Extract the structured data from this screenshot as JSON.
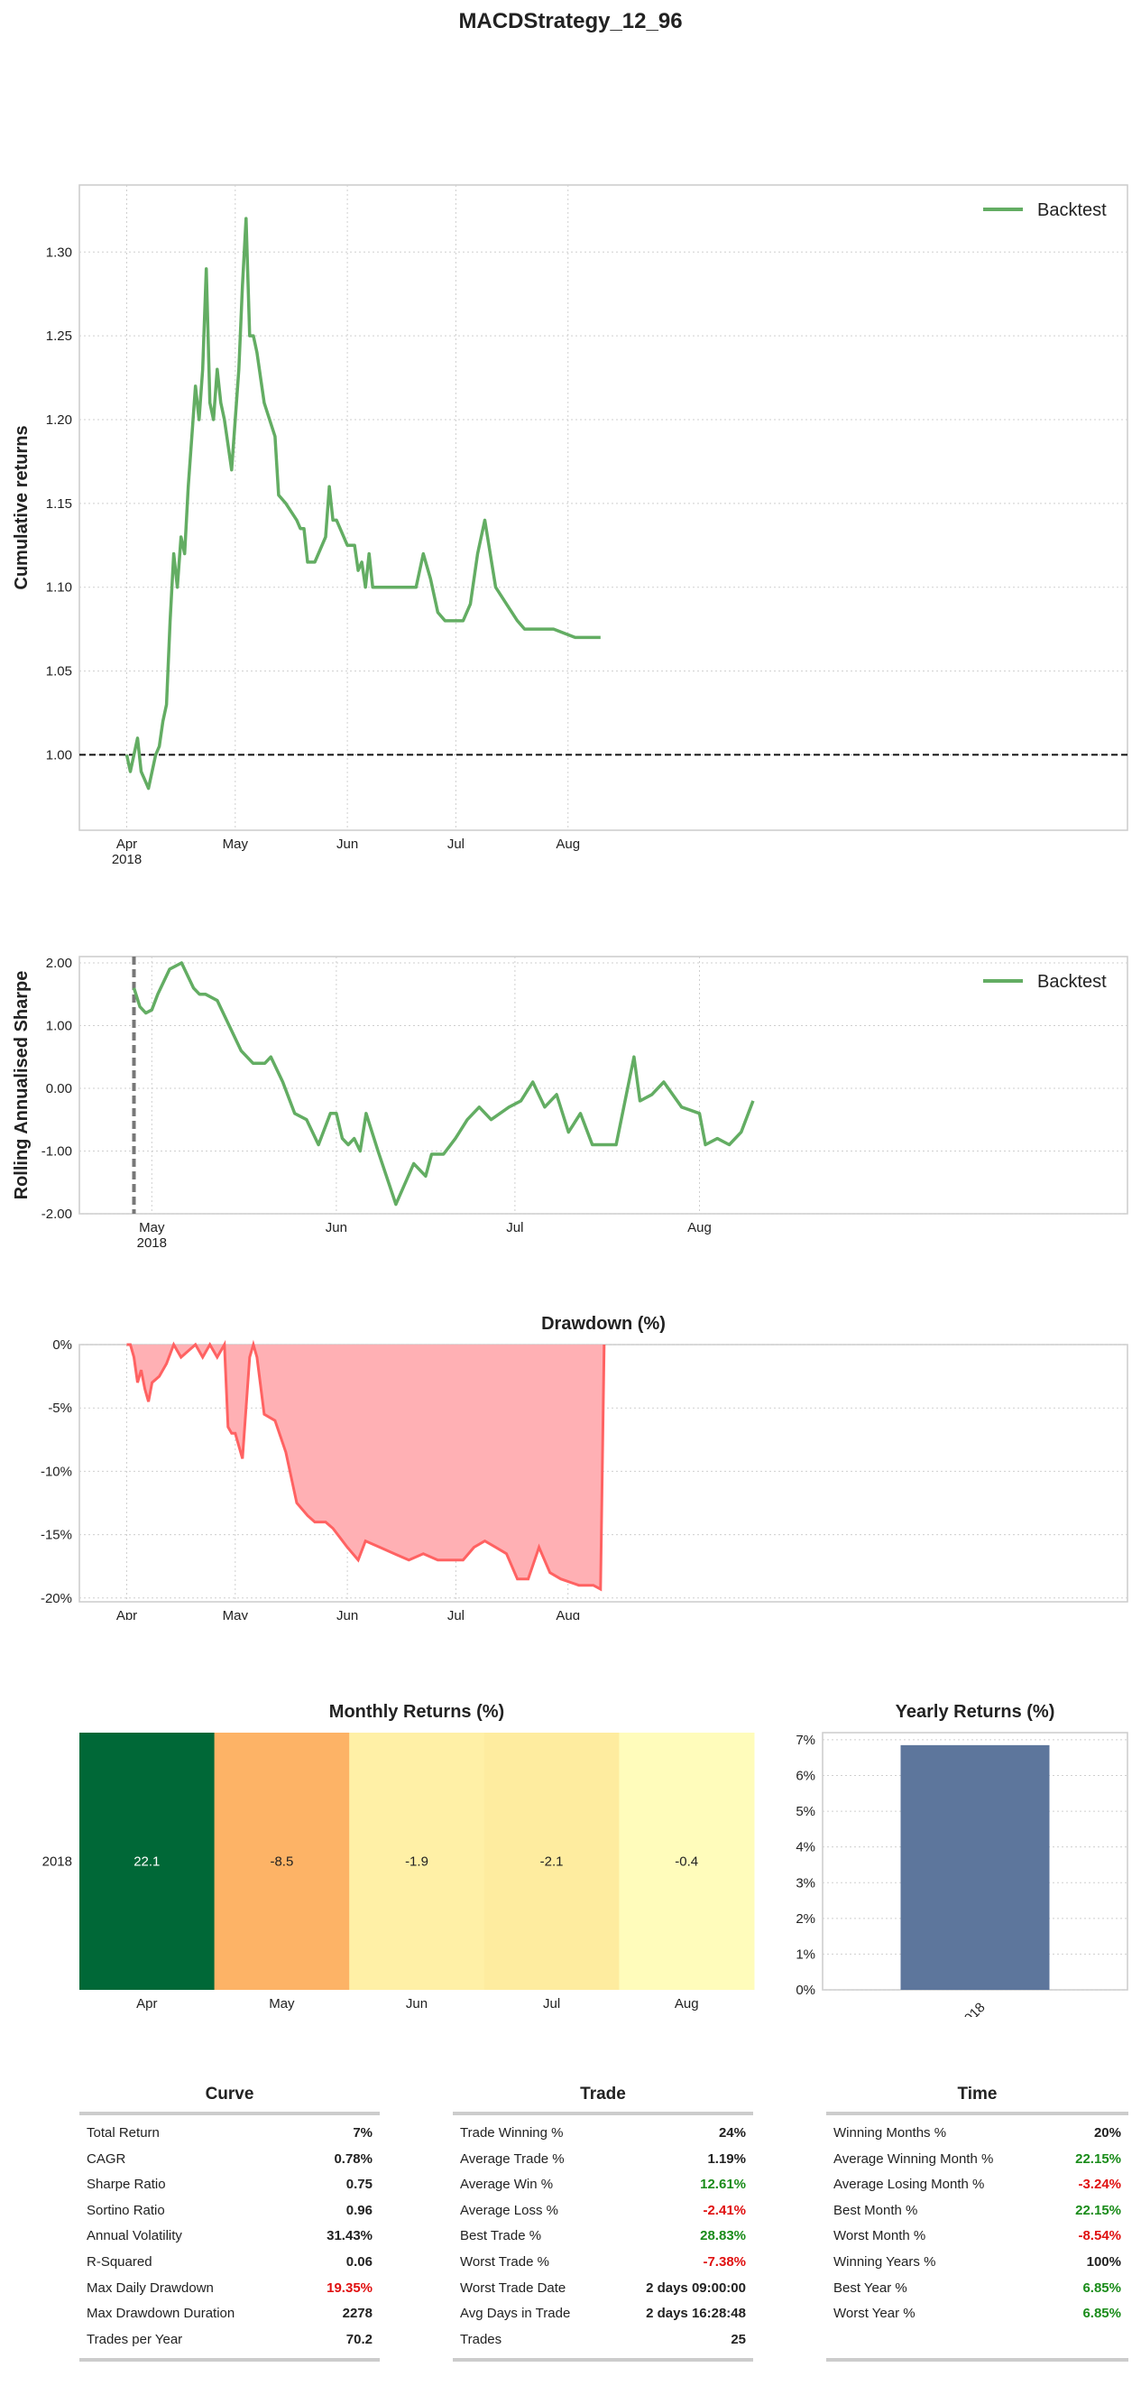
{
  "title": "MACDStrategy_12_96",
  "colors": {
    "backtest": "#63ad63",
    "drawdown_fill": "#ffb0b4",
    "drawdown_line": "#ff6262",
    "bar": "#5d769c",
    "positive": "#1a8c1a",
    "negative": "#e01010"
  },
  "chart_data": [
    {
      "id": "cumulative",
      "type": "line",
      "ylabel": "Cumulative returns",
      "ylim": [
        0.955,
        1.34
      ],
      "yticks": [
        "0.95",
        "1.00",
        "1.05",
        "1.10",
        "1.15",
        "1.20",
        "1.25",
        "1.30"
      ],
      "xticks": [
        "Apr\n2018",
        "May",
        "Jun",
        "Jul",
        "Aug"
      ],
      "grid": true,
      "legend": "top-right",
      "baseline": 1.0,
      "series": [
        {
          "name": "Backtest",
          "x": [
            "2018-04-01",
            "2018-04-02",
            "2018-04-03",
            "2018-04-04",
            "2018-04-05",
            "2018-04-06",
            "2018-04-07",
            "2018-04-08",
            "2018-04-09",
            "2018-04-10",
            "2018-04-11",
            "2018-04-12",
            "2018-04-13",
            "2018-04-14",
            "2018-04-15",
            "2018-04-16",
            "2018-04-17",
            "2018-04-18",
            "2018-04-19",
            "2018-04-20",
            "2018-04-21",
            "2018-04-22",
            "2018-04-23",
            "2018-04-24",
            "2018-04-25",
            "2018-04-26",
            "2018-04-27",
            "2018-04-28",
            "2018-04-30",
            "2018-05-02",
            "2018-05-03",
            "2018-05-04",
            "2018-05-05",
            "2018-05-06",
            "2018-05-07",
            "2018-05-09",
            "2018-05-12",
            "2018-05-13",
            "2018-05-15",
            "2018-05-18",
            "2018-05-19",
            "2018-05-20",
            "2018-05-21",
            "2018-05-23",
            "2018-05-26",
            "2018-05-27",
            "2018-05-28",
            "2018-05-29",
            "2018-06-01",
            "2018-06-02",
            "2018-06-03",
            "2018-06-04",
            "2018-06-05",
            "2018-06-06",
            "2018-06-07",
            "2018-06-08",
            "2018-06-10",
            "2018-06-13",
            "2018-06-16",
            "2018-06-20",
            "2018-06-22",
            "2018-06-24",
            "2018-06-26",
            "2018-06-28",
            "2018-07-01",
            "2018-07-03",
            "2018-07-05",
            "2018-07-07",
            "2018-07-09",
            "2018-07-12",
            "2018-07-15",
            "2018-07-18",
            "2018-07-20",
            "2018-07-23",
            "2018-07-25",
            "2018-07-28",
            "2018-08-03",
            "2018-08-07",
            "2018-08-10"
          ],
          "values": [
            1.0,
            0.99,
            1.0,
            1.01,
            0.99,
            0.985,
            0.98,
            0.99,
            1.0,
            1.005,
            1.02,
            1.03,
            1.08,
            1.12,
            1.1,
            1.13,
            1.12,
            1.16,
            1.19,
            1.22,
            1.2,
            1.23,
            1.29,
            1.21,
            1.2,
            1.23,
            1.21,
            1.2,
            1.17,
            1.23,
            1.28,
            1.32,
            1.25,
            1.25,
            1.24,
            1.21,
            1.19,
            1.155,
            1.15,
            1.14,
            1.135,
            1.135,
            1.115,
            1.115,
            1.13,
            1.16,
            1.14,
            1.14,
            1.125,
            1.125,
            1.125,
            1.11,
            1.115,
            1.1,
            1.12,
            1.1,
            1.1,
            1.1,
            1.1,
            1.1,
            1.12,
            1.105,
            1.085,
            1.08,
            1.08,
            1.08,
            1.09,
            1.12,
            1.14,
            1.1,
            1.09,
            1.08,
            1.075,
            1.075,
            1.075,
            1.075,
            1.07,
            1.07,
            1.07
          ]
        }
      ]
    },
    {
      "id": "rolling-sharpe",
      "type": "line",
      "ylabel": "Rolling Annualised Sharpe",
      "ylim": [
        -2.0,
        2.1
      ],
      "yticks": [
        "-2.00",
        "-1.00",
        "0.00",
        "1.00",
        "2.00"
      ],
      "xticks": [
        "May\n2018",
        "Jun",
        "Jul",
        "Aug"
      ],
      "grid": true,
      "legend": "top-right",
      "marker_line": "2018-04-28",
      "series": [
        {
          "name": "Backtest",
          "x": [
            "2018-04-28",
            "2018-04-29",
            "2018-04-30",
            "2018-05-01",
            "2018-05-02",
            "2018-05-04",
            "2018-05-06",
            "2018-05-07",
            "2018-05-08",
            "2018-05-09",
            "2018-05-10",
            "2018-05-12",
            "2018-05-13",
            "2018-05-14",
            "2018-05-16",
            "2018-05-18",
            "2018-05-20",
            "2018-05-21",
            "2018-05-22",
            "2018-05-23",
            "2018-05-25",
            "2018-05-27",
            "2018-05-29",
            "2018-05-31",
            "2018-06-01",
            "2018-06-02",
            "2018-06-03",
            "2018-06-04",
            "2018-06-05",
            "2018-06-06",
            "2018-06-08",
            "2018-06-11",
            "2018-06-14",
            "2018-06-16",
            "2018-06-17",
            "2018-06-19",
            "2018-06-21",
            "2018-06-23",
            "2018-06-25",
            "2018-06-27",
            "2018-06-30",
            "2018-07-02",
            "2018-07-04",
            "2018-07-06",
            "2018-07-08",
            "2018-07-10",
            "2018-07-12",
            "2018-07-14",
            "2018-07-18",
            "2018-07-21",
            "2018-07-22",
            "2018-07-24",
            "2018-07-26",
            "2018-07-29",
            "2018-08-01",
            "2018-08-02",
            "2018-08-04",
            "2018-08-06",
            "2018-08-08",
            "2018-08-10"
          ],
          "values": [
            1.6,
            1.3,
            1.2,
            1.25,
            1.5,
            1.9,
            2.0,
            1.8,
            1.6,
            1.5,
            1.5,
            1.4,
            1.2,
            1.0,
            0.6,
            0.4,
            0.4,
            0.5,
            0.3,
            0.1,
            -0.4,
            -0.5,
            -0.9,
            -0.4,
            -0.4,
            -0.8,
            -0.9,
            -0.8,
            -1.0,
            -0.4,
            -1.0,
            -1.85,
            -1.2,
            -1.4,
            -1.05,
            -1.05,
            -0.8,
            -0.5,
            -0.3,
            -0.5,
            -0.3,
            -0.2,
            0.1,
            -0.3,
            -0.1,
            -0.7,
            -0.4,
            -0.9,
            -0.9,
            0.5,
            -0.2,
            -0.1,
            0.1,
            -0.3,
            -0.4,
            -0.9,
            -0.8,
            -0.9,
            -0.7,
            -0.2
          ]
        }
      ]
    },
    {
      "id": "drawdown",
      "type": "area",
      "title": "Drawdown (%)",
      "ylim": [
        -20.3,
        0
      ],
      "yticks": [
        "0%",
        "-5%",
        "-10%",
        "-15%",
        "-20%"
      ],
      "xticks": [
        "Apr\n2018",
        "May",
        "Jun",
        "Jul",
        "Aug"
      ],
      "grid": true,
      "series": [
        {
          "x": [
            "2018-04-01",
            "2018-04-02",
            "2018-04-03",
            "2018-04-04",
            "2018-04-05",
            "2018-04-06",
            "2018-04-07",
            "2018-04-08",
            "2018-04-10",
            "2018-04-12",
            "2018-04-14",
            "2018-04-16",
            "2018-04-18",
            "2018-04-20",
            "2018-04-22",
            "2018-04-24",
            "2018-04-26",
            "2018-04-28",
            "2018-04-29",
            "2018-04-30",
            "2018-05-01",
            "2018-05-03",
            "2018-05-04",
            "2018-05-05",
            "2018-05-06",
            "2018-05-07",
            "2018-05-09",
            "2018-05-12",
            "2018-05-15",
            "2018-05-18",
            "2018-05-21",
            "2018-05-23",
            "2018-05-26",
            "2018-05-28",
            "2018-06-01",
            "2018-06-04",
            "2018-06-06",
            "2018-06-10",
            "2018-06-14",
            "2018-06-18",
            "2018-06-22",
            "2018-06-26",
            "2018-06-30",
            "2018-07-03",
            "2018-07-06",
            "2018-07-09",
            "2018-07-12",
            "2018-07-15",
            "2018-07-18",
            "2018-07-21",
            "2018-07-24",
            "2018-07-27",
            "2018-07-30",
            "2018-08-04",
            "2018-08-08",
            "2018-08-10",
            "2018-08-11"
          ],
          "values": [
            0,
            0,
            -1.0,
            -3.0,
            -2.0,
            -3.5,
            -4.5,
            -3.0,
            -2.5,
            -1.5,
            0,
            -1.0,
            -0.5,
            0,
            -1.0,
            0,
            -1.0,
            0,
            -6.5,
            -7.0,
            -7.0,
            -9.0,
            -5.0,
            -1.0,
            0,
            -1.0,
            -5.5,
            -6.0,
            -8.5,
            -12.5,
            -13.5,
            -14.0,
            -14.0,
            -14.5,
            -16.0,
            -17.0,
            -15.5,
            -16.0,
            -16.5,
            -17.0,
            -16.5,
            -17.0,
            -17.0,
            -17.0,
            -16.0,
            -15.5,
            -16.0,
            -16.5,
            -18.5,
            -18.5,
            -16.0,
            -18.0,
            -18.5,
            -19.0,
            -19.0,
            -19.3,
            0
          ]
        }
      ]
    },
    {
      "id": "monthly-returns",
      "type": "heatmap",
      "title": "Monthly Returns (%)",
      "rows": [
        "2018"
      ],
      "columns": [
        "Apr",
        "May",
        "Jun",
        "Jul",
        "Aug"
      ],
      "values": [
        [
          22.1,
          -8.5,
          -1.9,
          -2.1,
          -0.4
        ]
      ],
      "labels": [
        "22.1",
        "-8.5",
        "-1.9",
        "-2.1",
        "-0.4"
      ],
      "cell_colors": [
        "#006837",
        "#fdb366",
        "#fff0a6",
        "#feec9f",
        "#fffcbb"
      ]
    },
    {
      "id": "yearly-returns",
      "type": "bar",
      "title": "Yearly Returns (%)",
      "categories": [
        "2018"
      ],
      "values": [
        6.85
      ],
      "ylim": [
        0,
        7.2
      ],
      "yticks": [
        "0%",
        "1%",
        "2%",
        "3%",
        "4%",
        "5%",
        "6%",
        "7%"
      ],
      "grid": true
    }
  ],
  "stats": {
    "curve": {
      "title": "Curve",
      "rows": [
        {
          "k": "Total Return",
          "v": "7%",
          "tone": ""
        },
        {
          "k": "CAGR",
          "v": "0.78%",
          "tone": ""
        },
        {
          "k": "Sharpe Ratio",
          "v": "0.75",
          "tone": ""
        },
        {
          "k": "Sortino Ratio",
          "v": "0.96",
          "tone": ""
        },
        {
          "k": "Annual Volatility",
          "v": "31.43%",
          "tone": ""
        },
        {
          "k": "R-Squared",
          "v": "0.06",
          "tone": ""
        },
        {
          "k": "Max Daily Drawdown",
          "v": "19.35%",
          "tone": "neg"
        },
        {
          "k": "Max Drawdown Duration",
          "v": "2278",
          "tone": ""
        },
        {
          "k": "Trades per Year",
          "v": "70.2",
          "tone": ""
        }
      ]
    },
    "trade": {
      "title": "Trade",
      "rows": [
        {
          "k": "Trade Winning %",
          "v": "24%",
          "tone": ""
        },
        {
          "k": "Average Trade %",
          "v": "1.19%",
          "tone": ""
        },
        {
          "k": "Average Win %",
          "v": "12.61%",
          "tone": "pos"
        },
        {
          "k": "Average Loss %",
          "v": "-2.41%",
          "tone": "neg"
        },
        {
          "k": "Best Trade %",
          "v": "28.83%",
          "tone": "pos"
        },
        {
          "k": "Worst Trade %",
          "v": "-7.38%",
          "tone": "neg"
        },
        {
          "k": "Worst Trade Date",
          "v": "2 days 09:00:00",
          "tone": ""
        },
        {
          "k": "Avg Days in Trade",
          "v": "2 days 16:28:48",
          "tone": ""
        },
        {
          "k": "Trades",
          "v": "25",
          "tone": ""
        }
      ]
    },
    "time": {
      "title": "Time",
      "rows": [
        {
          "k": "Winning Months %",
          "v": "20%",
          "tone": ""
        },
        {
          "k": "Average Winning Month %",
          "v": "22.15%",
          "tone": "pos"
        },
        {
          "k": "Average Losing Month %",
          "v": "-3.24%",
          "tone": "neg"
        },
        {
          "k": "Best Month %",
          "v": "22.15%",
          "tone": "pos"
        },
        {
          "k": "Worst Month %",
          "v": "-8.54%",
          "tone": "neg"
        },
        {
          "k": "Winning Years %",
          "v": "100%",
          "tone": ""
        },
        {
          "k": "Best Year %",
          "v": "6.85%",
          "tone": "pos"
        },
        {
          "k": "Worst Year %",
          "v": "6.85%",
          "tone": "pos"
        }
      ]
    }
  }
}
